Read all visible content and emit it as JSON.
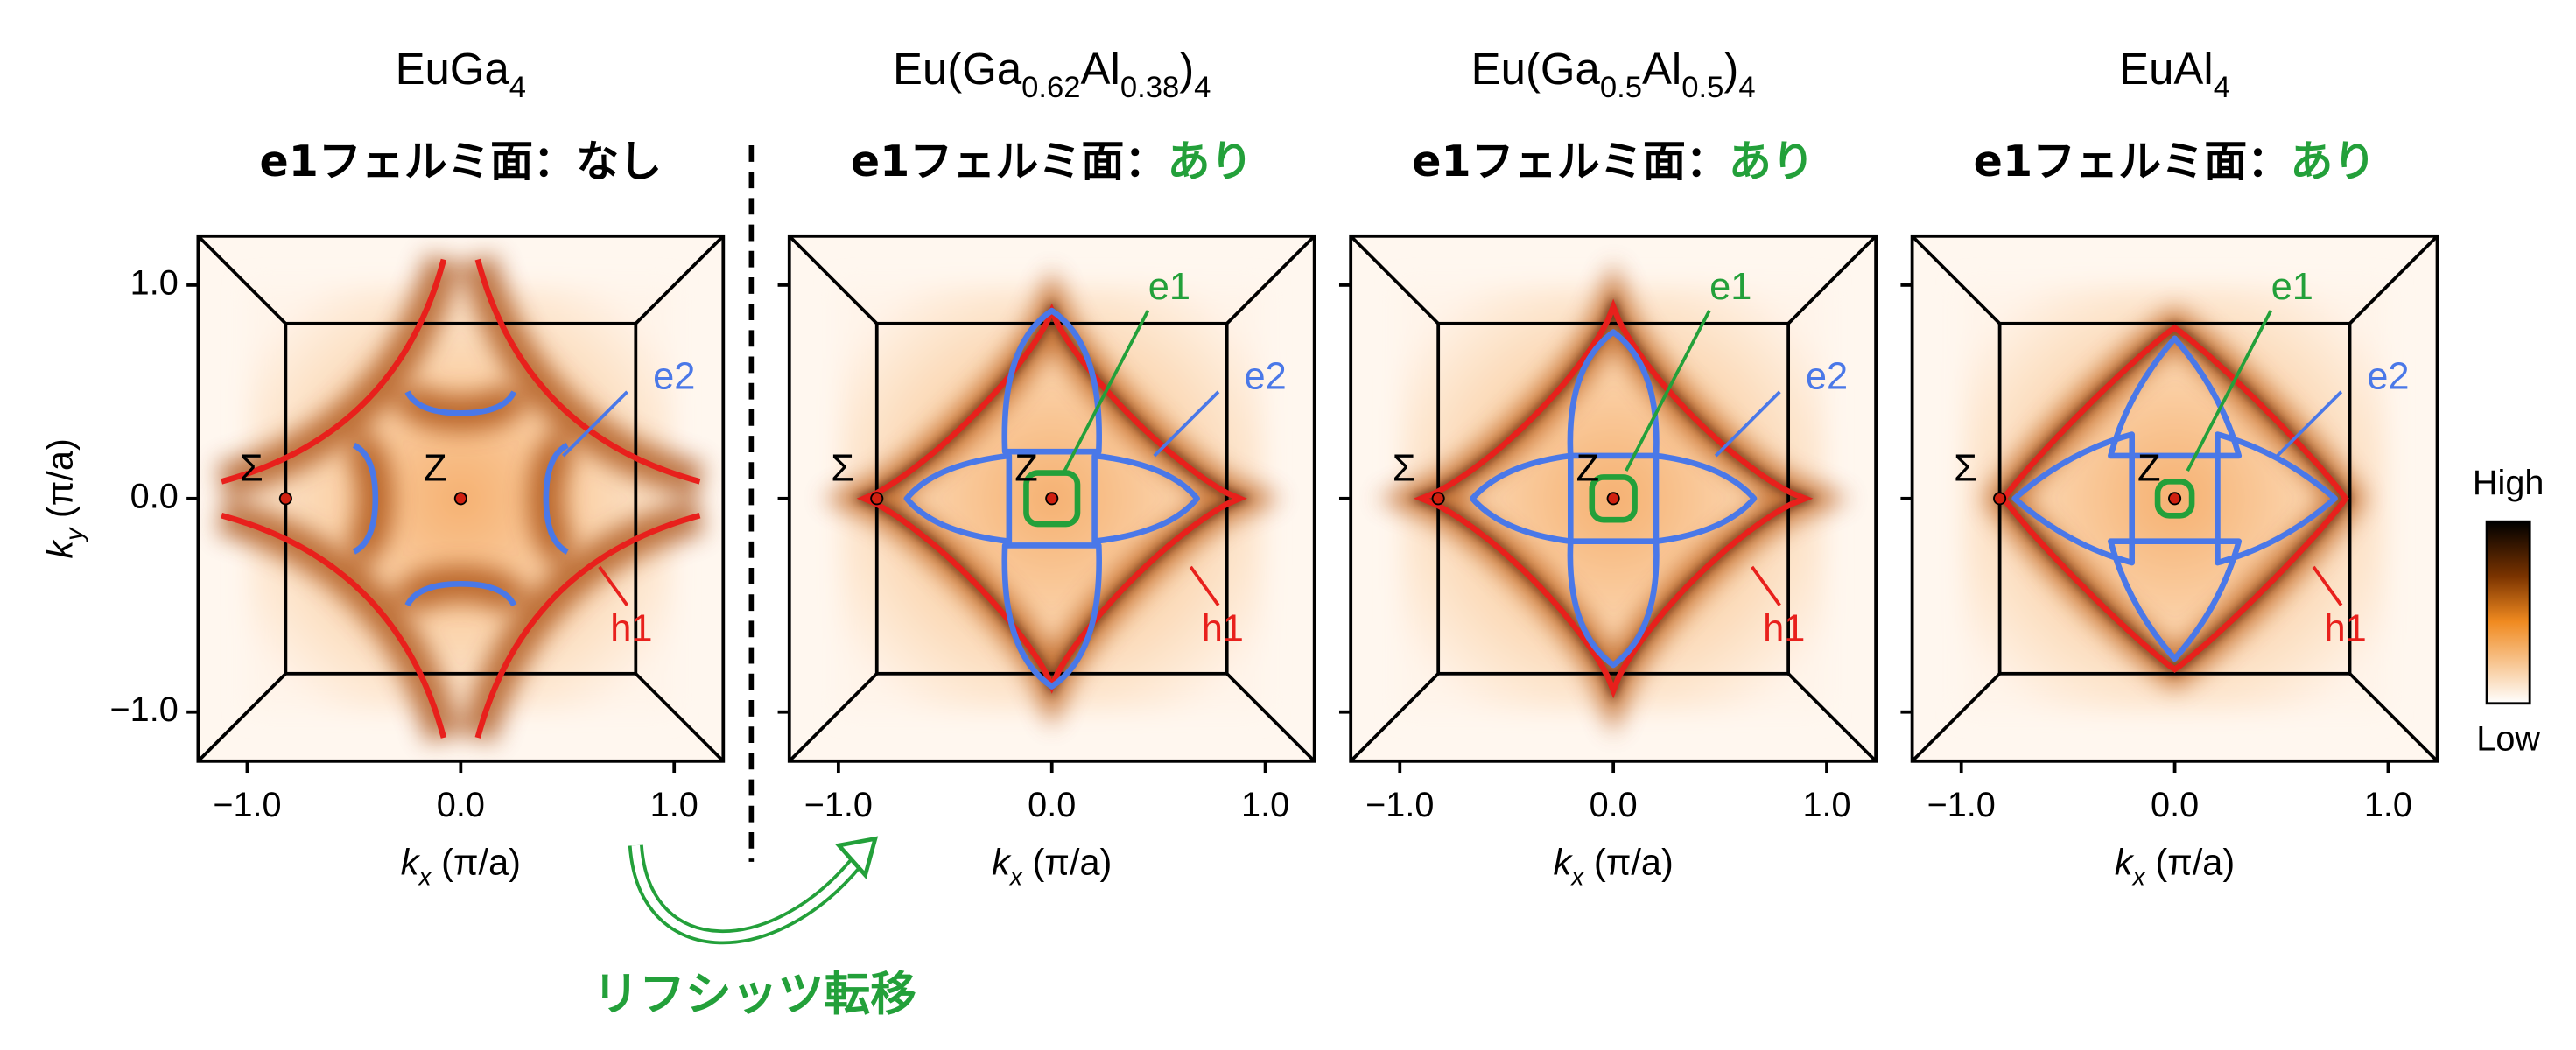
{
  "panels": [
    {
      "title": [
        {
          "text": "EuGa"
        },
        {
          "text": "4",
          "sub": true
        }
      ],
      "subtitle": "e1フェルミ面：",
      "status": "なし",
      "status_color": "#000000",
      "labels": {
        "sigma": "Σ",
        "z": "Z",
        "e2": "e2",
        "h1": "h1"
      }
    },
    {
      "title": [
        {
          "text": "Eu(Ga"
        },
        {
          "text": "0.62",
          "sub": true
        },
        {
          "text": "Al"
        },
        {
          "text": "0.38",
          "sub": true
        },
        {
          "text": ")"
        },
        {
          "text": "4",
          "sub": true
        }
      ],
      "subtitle": "e1フェルミ面：",
      "status": "あり",
      "status_color": "#23a03a",
      "labels": {
        "sigma": "Σ",
        "z": "Z",
        "e1": "e1",
        "e2": "e2",
        "h1": "h1"
      }
    },
    {
      "title": [
        {
          "text": "Eu(Ga"
        },
        {
          "text": "0.5",
          "sub": true
        },
        {
          "text": "Al"
        },
        {
          "text": "0.5",
          "sub": true
        },
        {
          "text": ")"
        },
        {
          "text": "4",
          "sub": true
        }
      ],
      "subtitle": "e1フェルミ面：",
      "status": "あり",
      "status_color": "#23a03a",
      "labels": {
        "sigma": "Σ",
        "z": "Z",
        "e1": "e1",
        "e2": "e2",
        "h1": "h1"
      }
    },
    {
      "title": [
        {
          "text": "EuAl"
        },
        {
          "text": "4",
          "sub": true
        }
      ],
      "subtitle": "e1フェルミ面：",
      "status": "あり",
      "status_color": "#23a03a",
      "labels": {
        "sigma": "Σ",
        "z": "Z",
        "e1": "e1",
        "e2": "e2",
        "h1": "h1"
      }
    }
  ],
  "axes": {
    "xlabel": [
      {
        "text": "k",
        "italic": true
      },
      {
        "text": "x",
        "sub": true,
        "italic": true
      },
      {
        "text": " (π/a)"
      }
    ],
    "ylabel": [
      {
        "text": "k",
        "italic": true
      },
      {
        "text": "y",
        "sub": true,
        "italic": true
      },
      {
        "text": " (π/a)"
      }
    ],
    "xlim": [
      -1.23,
      1.23
    ],
    "ylim": [
      -1.23,
      1.23
    ],
    "xticks": [
      {
        "value": -1,
        "label": "−1.0"
      },
      {
        "value": 0,
        "label": "0.0"
      },
      {
        "value": 1,
        "label": "1.0"
      }
    ],
    "yticks": [
      {
        "value": -1,
        "label": "−1.0"
      },
      {
        "value": 0,
        "label": "0.0"
      },
      {
        "value": 1,
        "label": "1.0"
      }
    ]
  },
  "colorbar": {
    "high": "High",
    "low": "Low"
  },
  "transition": "リフシッツ転移"
}
